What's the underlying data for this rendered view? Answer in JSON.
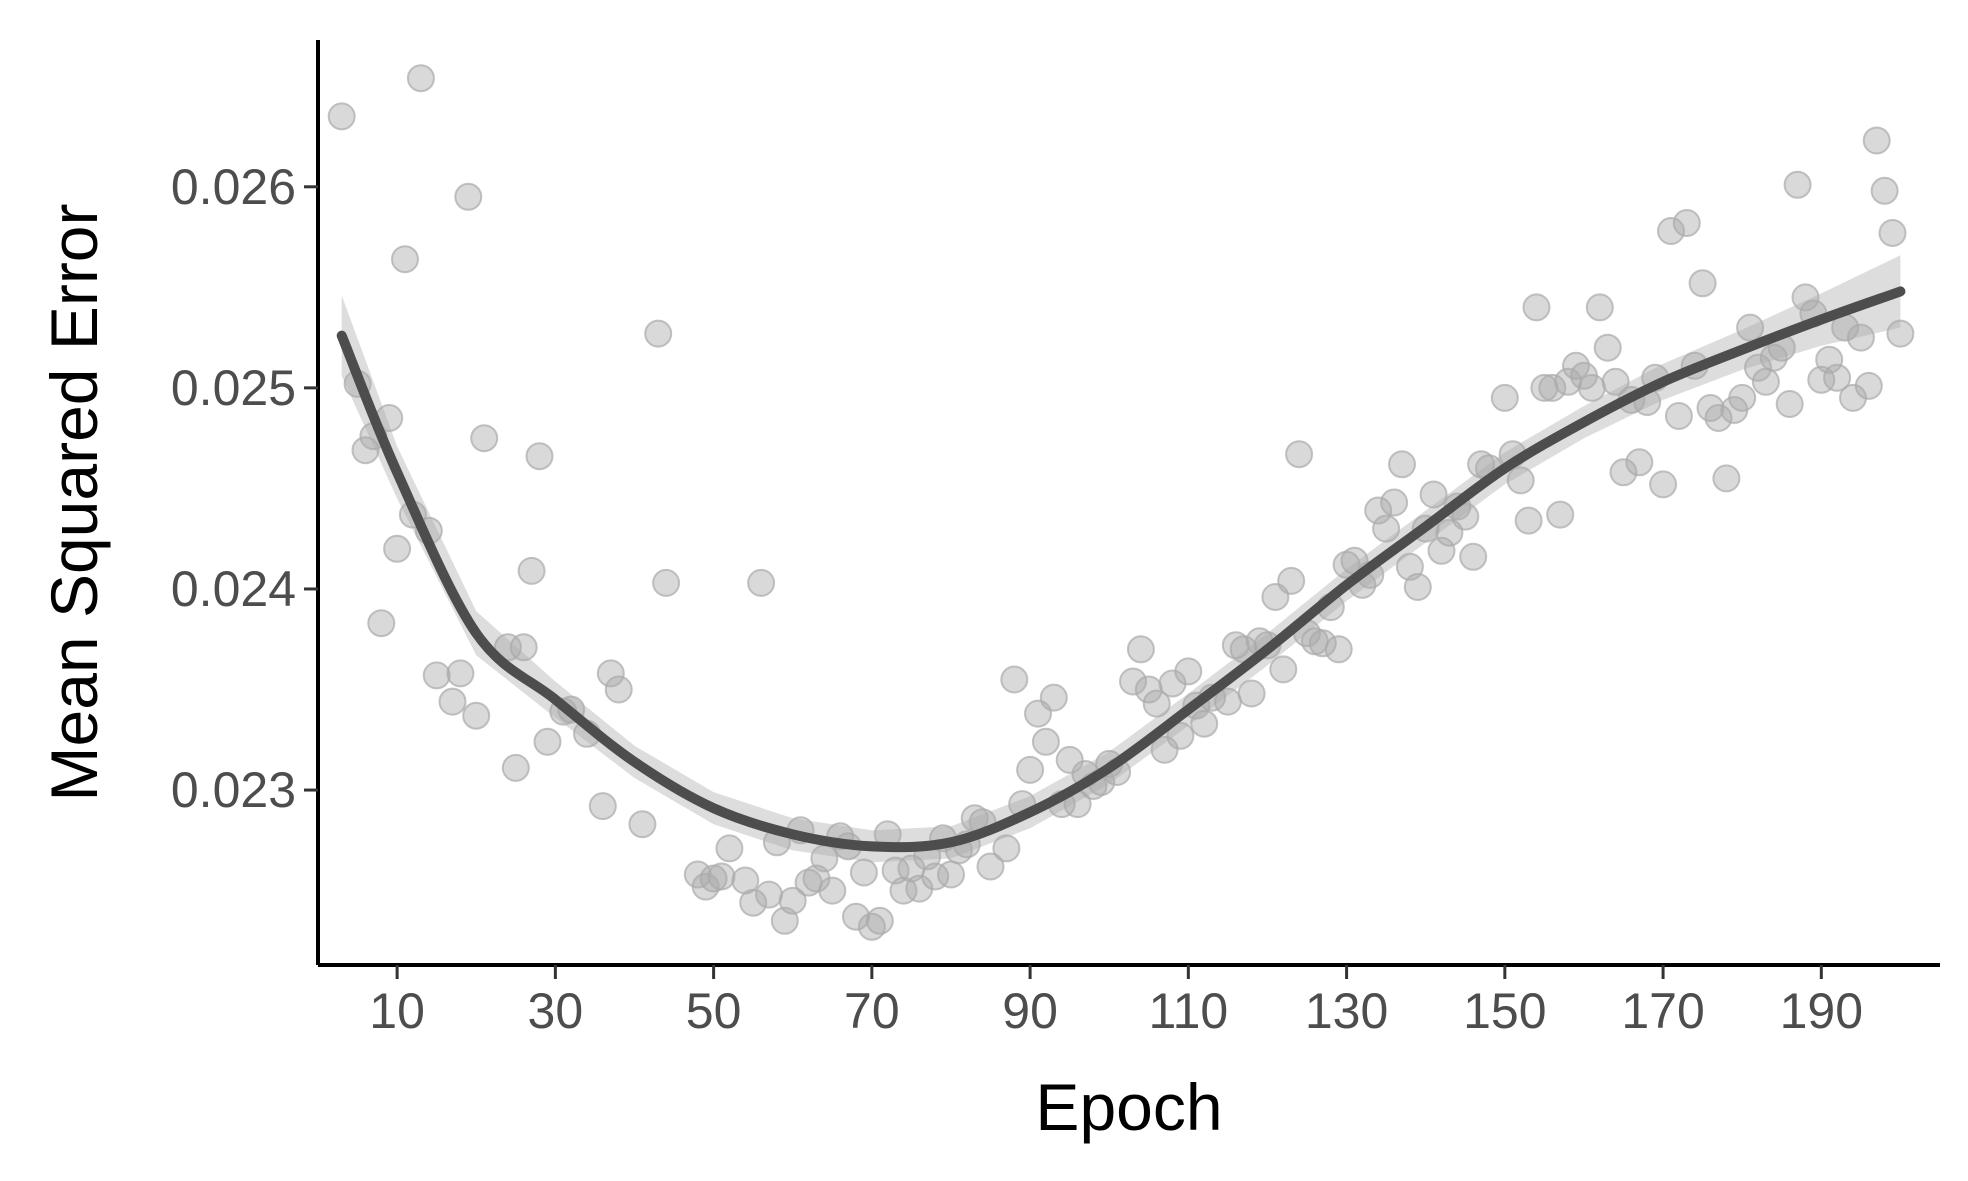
{
  "chart_data": {
    "type": "scatter",
    "title": "",
    "xlabel": "Epoch",
    "ylabel": "Mean Squared Error",
    "xlim": [
      0,
      205
    ],
    "ylim": [
      0.02213,
      0.02673
    ],
    "x_ticks": [
      10,
      30,
      50,
      70,
      90,
      110,
      130,
      150,
      170,
      190
    ],
    "y_ticks": [
      0.023,
      0.024,
      0.025,
      0.026
    ],
    "y_tick_labels": [
      "0.023",
      "0.024",
      "0.025",
      "0.026"
    ],
    "grid": false,
    "legend": "none",
    "colors": {
      "points": "#aaaaaa",
      "smooth_line": "#4d4d4d",
      "confidence_band": "#d9d9d9",
      "axis": "#000000"
    },
    "series": [
      {
        "kind": "points",
        "points": [
          [
            3,
            0.02635
          ],
          [
            5,
            0.02502
          ],
          [
            6,
            0.02469
          ],
          [
            7,
            0.02476
          ],
          [
            8,
            0.02383
          ],
          [
            9,
            0.02485
          ],
          [
            10,
            0.0242
          ],
          [
            11,
            0.02564
          ],
          [
            12,
            0.02437
          ],
          [
            13,
            0.02654
          ],
          [
            14,
            0.02429
          ],
          [
            15,
            0.02357
          ],
          [
            17,
            0.02344
          ],
          [
            18,
            0.02358
          ],
          [
            19,
            0.02595
          ],
          [
            20,
            0.02337
          ],
          [
            21,
            0.02475
          ],
          [
            24,
            0.02371
          ],
          [
            25,
            0.02311
          ],
          [
            26,
            0.02371
          ],
          [
            27,
            0.02409
          ],
          [
            28,
            0.02466
          ],
          [
            29,
            0.02324
          ],
          [
            31,
            0.02339
          ],
          [
            32,
            0.0234
          ],
          [
            34,
            0.02328
          ],
          [
            36,
            0.02292
          ],
          [
            37,
            0.02358
          ],
          [
            38,
            0.0235
          ],
          [
            41,
            0.02283
          ],
          [
            43,
            0.02527
          ],
          [
            44,
            0.02403
          ],
          [
            48,
            0.02258
          ],
          [
            49,
            0.02252
          ],
          [
            50,
            0.02256
          ],
          [
            51,
            0.02257
          ],
          [
            52,
            0.02271
          ],
          [
            54,
            0.02255
          ],
          [
            55,
            0.02244
          ],
          [
            56,
            0.02403
          ],
          [
            57,
            0.02248
          ],
          [
            58,
            0.02274
          ],
          [
            59,
            0.02235
          ],
          [
            60,
            0.02245
          ],
          [
            61,
            0.0228
          ],
          [
            62,
            0.02254
          ],
          [
            63,
            0.02256
          ],
          [
            64,
            0.02266
          ],
          [
            65,
            0.0225
          ],
          [
            66,
            0.02277
          ],
          [
            67,
            0.02272
          ],
          [
            68,
            0.02237
          ],
          [
            69,
            0.02259
          ],
          [
            70,
            0.02232
          ],
          [
            71,
            0.02235
          ],
          [
            72,
            0.02278
          ],
          [
            73,
            0.0226
          ],
          [
            74,
            0.0225
          ],
          [
            75,
            0.02261
          ],
          [
            76,
            0.02251
          ],
          [
            77,
            0.02267
          ],
          [
            78,
            0.02257
          ],
          [
            79,
            0.02276
          ],
          [
            80,
            0.02258
          ],
          [
            81,
            0.0227
          ],
          [
            82,
            0.02273
          ],
          [
            83,
            0.02286
          ],
          [
            84,
            0.02284
          ],
          [
            85,
            0.02262
          ],
          [
            87,
            0.02271
          ],
          [
            88,
            0.02355
          ],
          [
            89,
            0.02293
          ],
          [
            90,
            0.0231
          ],
          [
            91,
            0.02338
          ],
          [
            92,
            0.02324
          ],
          [
            93,
            0.02346
          ],
          [
            94,
            0.02293
          ],
          [
            95,
            0.02315
          ],
          [
            96,
            0.02293
          ],
          [
            97,
            0.02308
          ],
          [
            98,
            0.02302
          ],
          [
            99,
            0.02304
          ],
          [
            100,
            0.02313
          ],
          [
            101,
            0.02309
          ],
          [
            103,
            0.02354
          ],
          [
            104,
            0.0237
          ],
          [
            105,
            0.0235
          ],
          [
            106,
            0.02343
          ],
          [
            107,
            0.0232
          ],
          [
            108,
            0.02353
          ],
          [
            109,
            0.02327
          ],
          [
            110,
            0.02359
          ],
          [
            111,
            0.02342
          ],
          [
            112,
            0.02333
          ],
          [
            113,
            0.02346
          ],
          [
            115,
            0.02344
          ],
          [
            116,
            0.02372
          ],
          [
            117,
            0.0237
          ],
          [
            118,
            0.02348
          ],
          [
            119,
            0.02374
          ],
          [
            120,
            0.02372
          ],
          [
            121,
            0.02396
          ],
          [
            122,
            0.0236
          ],
          [
            123,
            0.02404
          ],
          [
            124,
            0.02467
          ],
          [
            125,
            0.02378
          ],
          [
            126,
            0.02374
          ],
          [
            127,
            0.02373
          ],
          [
            128,
            0.02391
          ],
          [
            129,
            0.0237
          ],
          [
            130,
            0.02412
          ],
          [
            131,
            0.02414
          ],
          [
            132,
            0.02402
          ],
          [
            133,
            0.02407
          ],
          [
            134,
            0.02439
          ],
          [
            135,
            0.0243
          ],
          [
            136,
            0.02443
          ],
          [
            137,
            0.02462
          ],
          [
            138,
            0.02411
          ],
          [
            139,
            0.02401
          ],
          [
            140,
            0.0243
          ],
          [
            141,
            0.02447
          ],
          [
            142,
            0.02419
          ],
          [
            143,
            0.02428
          ],
          [
            144,
            0.02441
          ],
          [
            145,
            0.02436
          ],
          [
            146,
            0.02416
          ],
          [
            147,
            0.02462
          ],
          [
            148,
            0.0246
          ],
          [
            150,
            0.02495
          ],
          [
            151,
            0.02467
          ],
          [
            152,
            0.02454
          ],
          [
            153,
            0.02434
          ],
          [
            154,
            0.0254
          ],
          [
            155,
            0.025
          ],
          [
            156,
            0.025
          ],
          [
            157,
            0.02437
          ],
          [
            158,
            0.02503
          ],
          [
            159,
            0.02511
          ],
          [
            160,
            0.02506
          ],
          [
            161,
            0.025
          ],
          [
            162,
            0.0254
          ],
          [
            163,
            0.0252
          ],
          [
            164,
            0.02503
          ],
          [
            165,
            0.02458
          ],
          [
            166,
            0.02494
          ],
          [
            167,
            0.02463
          ],
          [
            168,
            0.02493
          ],
          [
            169,
            0.02505
          ],
          [
            170,
            0.02452
          ],
          [
            171,
            0.02578
          ],
          [
            172,
            0.02486
          ],
          [
            173,
            0.02582
          ],
          [
            174,
            0.02511
          ],
          [
            175,
            0.02552
          ],
          [
            176,
            0.0249
          ],
          [
            177,
            0.02485
          ],
          [
            178,
            0.02455
          ],
          [
            179,
            0.02489
          ],
          [
            180,
            0.02495
          ],
          [
            181,
            0.0253
          ],
          [
            182,
            0.0251
          ],
          [
            183,
            0.02503
          ],
          [
            184,
            0.02515
          ],
          [
            185,
            0.0252
          ],
          [
            186,
            0.02492
          ],
          [
            187,
            0.02601
          ],
          [
            188,
            0.02545
          ],
          [
            189,
            0.02537
          ],
          [
            190,
            0.02504
          ],
          [
            191,
            0.02514
          ],
          [
            192,
            0.02505
          ],
          [
            193,
            0.0253
          ],
          [
            194,
            0.02495
          ],
          [
            195,
            0.02525
          ],
          [
            196,
            0.02501
          ],
          [
            197,
            0.02623
          ],
          [
            198,
            0.02598
          ],
          [
            199,
            0.02577
          ],
          [
            200,
            0.02527
          ]
        ]
      },
      {
        "kind": "smooth",
        "points": [
          [
            3,
            0.02526
          ],
          [
            10,
            0.02458
          ],
          [
            20,
            0.02378
          ],
          [
            30,
            0.02345
          ],
          [
            40,
            0.02314
          ],
          [
            50,
            0.02291
          ],
          [
            60,
            0.02278
          ],
          [
            70,
            0.02272
          ],
          [
            80,
            0.02274
          ],
          [
            90,
            0.02289
          ],
          [
            100,
            0.02311
          ],
          [
            110,
            0.0234
          ],
          [
            120,
            0.0237
          ],
          [
            130,
            0.02402
          ],
          [
            140,
            0.02431
          ],
          [
            150,
            0.0246
          ],
          [
            160,
            0.02483
          ],
          [
            170,
            0.02503
          ],
          [
            180,
            0.02519
          ],
          [
            190,
            0.02534
          ],
          [
            200,
            0.02548
          ]
        ],
        "band": [
          [
            3,
            0.02506,
            0.02546
          ],
          [
            10,
            0.02445,
            0.02471
          ],
          [
            20,
            0.02367,
            0.02389
          ],
          [
            30,
            0.02336,
            0.02354
          ],
          [
            40,
            0.02306,
            0.02322
          ],
          [
            50,
            0.02283,
            0.02299
          ],
          [
            60,
            0.0227,
            0.02286
          ],
          [
            70,
            0.02264,
            0.0228
          ],
          [
            80,
            0.02266,
            0.02282
          ],
          [
            90,
            0.02281,
            0.02297
          ],
          [
            100,
            0.02303,
            0.02319
          ],
          [
            110,
            0.02332,
            0.02348
          ],
          [
            120,
            0.02362,
            0.02378
          ],
          [
            130,
            0.02394,
            0.0241
          ],
          [
            140,
            0.02423,
            0.02439
          ],
          [
            150,
            0.02452,
            0.02468
          ],
          [
            160,
            0.02475,
            0.02491
          ],
          [
            170,
            0.02494,
            0.02512
          ],
          [
            180,
            0.02509,
            0.02529
          ],
          [
            190,
            0.02521,
            0.02547
          ],
          [
            200,
            0.0253,
            0.02566
          ]
        ]
      }
    ]
  }
}
